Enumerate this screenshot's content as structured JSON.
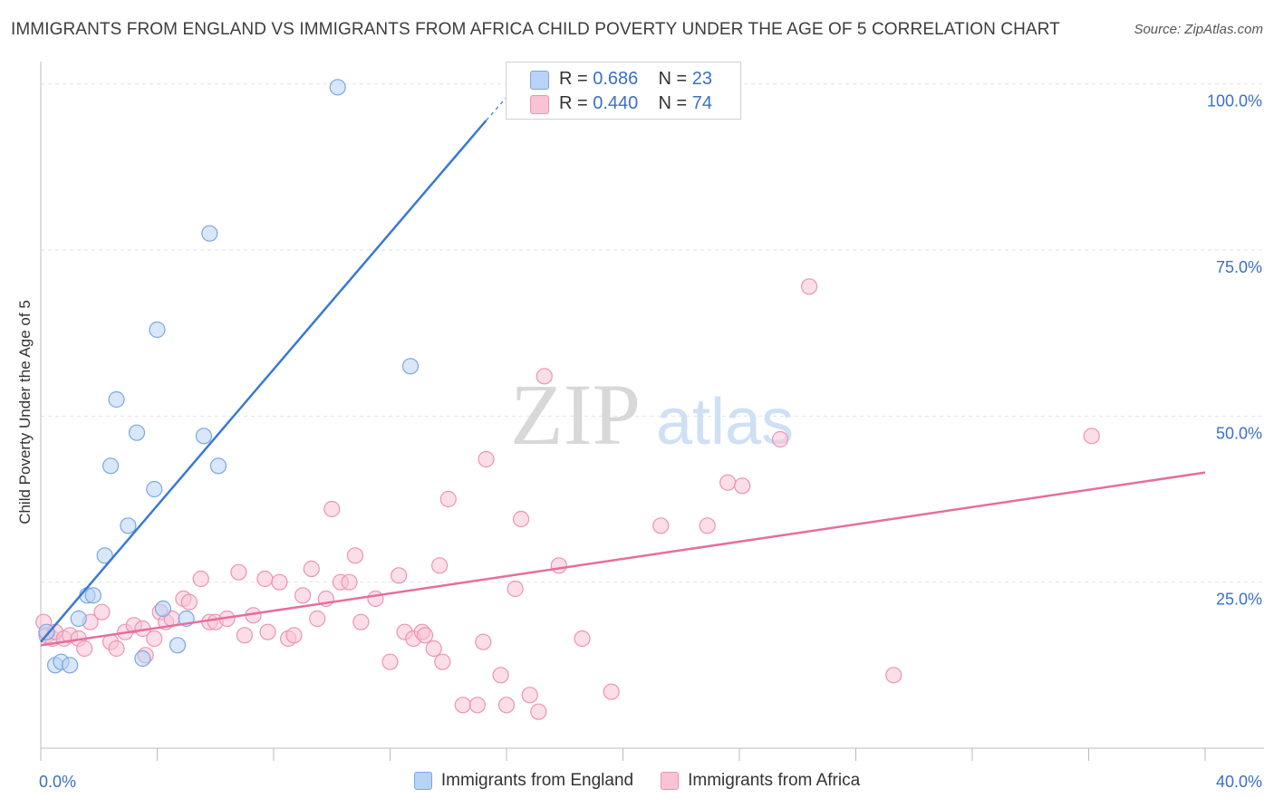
{
  "title": "IMMIGRANTS FROM ENGLAND VS IMMIGRANTS FROM AFRICA CHILD POVERTY UNDER THE AGE OF 5 CORRELATION CHART",
  "source": "Source: ZipAtlas.com",
  "watermark": {
    "zip": "ZIP",
    "atlas": "atlas"
  },
  "stats": [
    {
      "r_label": "R = ",
      "r_value": "0.686",
      "n_label": "N = ",
      "n_value": "23"
    },
    {
      "r_label": "R = ",
      "r_value": "0.440",
      "n_label": "N = ",
      "n_value": "74"
    }
  ],
  "legend": [
    {
      "label": "Immigrants from England"
    },
    {
      "label": "Immigrants from Africa"
    }
  ],
  "chart_data": {
    "type": "scatter",
    "ylabel": "Child Poverty Under the Age of 5",
    "xlim": [
      0,
      40
    ],
    "ylim": [
      0,
      102
    ],
    "x_tick_labels": [
      {
        "value": 0,
        "label": "0.0%"
      },
      {
        "value": 40,
        "label": "40.0%"
      }
    ],
    "y_tick_labels": [
      {
        "value": 25,
        "label": "25.0%"
      },
      {
        "value": 50,
        "label": "50.0%"
      },
      {
        "value": 75,
        "label": "75.0%"
      },
      {
        "value": 100,
        "label": "100.0%"
      }
    ],
    "grid": true,
    "colors": {
      "england_fill": "#b8d3f5",
      "england_stroke": "#7aa7e0",
      "england_line": "#3a78d4",
      "africa_fill": "#f8c3d5",
      "africa_stroke": "#ec94b2",
      "africa_line": "#e66e9b",
      "tick_label": "#3a6fc8"
    },
    "series": [
      {
        "name": "Immigrants from England",
        "points": [
          [
            0.2,
            17.5
          ],
          [
            0.5,
            12.5
          ],
          [
            0.7,
            13.0
          ],
          [
            1.0,
            12.5
          ],
          [
            1.3,
            19.5
          ],
          [
            1.6,
            23.0
          ],
          [
            1.8,
            23.0
          ],
          [
            2.2,
            29.0
          ],
          [
            2.4,
            42.5
          ],
          [
            2.6,
            52.5
          ],
          [
            3.0,
            33.5
          ],
          [
            3.3,
            47.5
          ],
          [
            3.5,
            13.5
          ],
          [
            3.9,
            39.0
          ],
          [
            4.0,
            63.0
          ],
          [
            4.2,
            21.0
          ],
          [
            4.7,
            15.5
          ],
          [
            5.0,
            19.5
          ],
          [
            5.6,
            47.0
          ],
          [
            5.8,
            77.5
          ],
          [
            6.1,
            42.5
          ],
          [
            10.2,
            99.5
          ],
          [
            12.7,
            57.5
          ]
        ],
        "trend": [
          [
            0.0,
            16.0
          ],
          [
            15.3,
            94.5
          ]
        ],
        "trend_dashed_to": [
          16.0,
          98.0
        ]
      },
      {
        "name": "Immigrants from Africa",
        "points": [
          [
            0.1,
            19.0
          ],
          [
            0.2,
            17.0
          ],
          [
            0.4,
            16.5
          ],
          [
            0.5,
            17.5
          ],
          [
            0.8,
            16.5
          ],
          [
            1.0,
            17.0
          ],
          [
            1.3,
            16.5
          ],
          [
            1.5,
            15.0
          ],
          [
            1.7,
            19.0
          ],
          [
            2.1,
            20.5
          ],
          [
            2.4,
            16.0
          ],
          [
            2.6,
            15.0
          ],
          [
            2.9,
            17.5
          ],
          [
            3.2,
            18.5
          ],
          [
            3.5,
            18.0
          ],
          [
            3.6,
            14.0
          ],
          [
            3.9,
            16.5
          ],
          [
            4.1,
            20.5
          ],
          [
            4.3,
            19.0
          ],
          [
            4.5,
            19.5
          ],
          [
            4.9,
            22.5
          ],
          [
            5.1,
            22.0
          ],
          [
            5.5,
            25.5
          ],
          [
            5.8,
            19.0
          ],
          [
            6.0,
            19.0
          ],
          [
            6.4,
            19.5
          ],
          [
            6.8,
            26.5
          ],
          [
            7.0,
            17.0
          ],
          [
            7.3,
            20.0
          ],
          [
            7.7,
            25.5
          ],
          [
            7.8,
            17.5
          ],
          [
            8.2,
            25.0
          ],
          [
            8.5,
            16.5
          ],
          [
            8.7,
            17.0
          ],
          [
            9.0,
            23.0
          ],
          [
            9.3,
            27.0
          ],
          [
            9.5,
            19.5
          ],
          [
            9.8,
            22.5
          ],
          [
            10.0,
            36.0
          ],
          [
            10.3,
            25.0
          ],
          [
            10.6,
            25.0
          ],
          [
            10.8,
            29.0
          ],
          [
            11.0,
            19.0
          ],
          [
            11.5,
            22.5
          ],
          [
            12.0,
            13.0
          ],
          [
            12.3,
            26.0
          ],
          [
            12.5,
            17.5
          ],
          [
            12.8,
            16.5
          ],
          [
            13.1,
            17.5
          ],
          [
            13.2,
            17.0
          ],
          [
            13.5,
            15.0
          ],
          [
            13.7,
            27.5
          ],
          [
            13.8,
            13.0
          ],
          [
            14.0,
            37.5
          ],
          [
            14.5,
            6.5
          ],
          [
            15.0,
            6.5
          ],
          [
            15.2,
            16.0
          ],
          [
            15.3,
            43.5
          ],
          [
            15.8,
            11.0
          ],
          [
            16.0,
            6.5
          ],
          [
            16.3,
            24.0
          ],
          [
            16.5,
            34.5
          ],
          [
            16.8,
            8.0
          ],
          [
            17.1,
            5.5
          ],
          [
            17.3,
            56.0
          ],
          [
            17.8,
            27.5
          ],
          [
            18.6,
            16.5
          ],
          [
            19.6,
            8.5
          ],
          [
            21.3,
            33.5
          ],
          [
            22.9,
            33.5
          ],
          [
            23.6,
            40.0
          ],
          [
            24.1,
            39.5
          ],
          [
            25.4,
            46.5
          ],
          [
            26.4,
            69.5
          ],
          [
            29.3,
            11.0
          ],
          [
            36.1,
            47.0
          ]
        ],
        "trend": [
          [
            0.0,
            15.5
          ],
          [
            40.0,
            41.5
          ]
        ]
      }
    ]
  }
}
